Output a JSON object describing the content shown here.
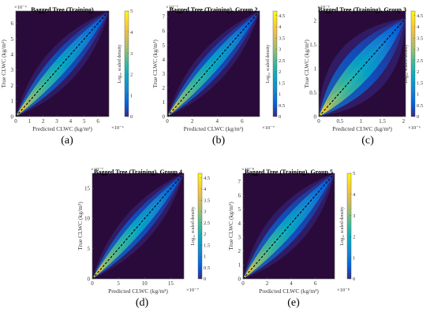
{
  "chart_data": [
    {
      "type": "heatmap",
      "panel_label": "(a)",
      "title": "Bagged Tree (Training)",
      "xlabel": "Predicted CLWC (kg/m³)",
      "ylabel": "True CLWC (kg/m³)",
      "axis_exponent": "×10⁻⁶",
      "xlim": [
        0,
        6.8
      ],
      "ylim": [
        0,
        6.8
      ],
      "xticks": [
        0,
        1,
        2,
        3,
        4,
        5,
        6
      ],
      "yticks": [
        0,
        1,
        2,
        3,
        4,
        5,
        6
      ],
      "colorbar_label": "Log₁₀ scaled density",
      "colorbar_range": [
        0,
        5
      ],
      "colorbar_ticks": [
        0,
        1,
        2,
        3,
        4,
        5
      ],
      "diagonal": "dashed black y = x",
      "spread": 0.055
    },
    {
      "type": "heatmap",
      "panel_label": "(b)",
      "title": "Bagged Tree (Training), Group 2",
      "xlabel": "Predicted CLWC (kg/m³)",
      "ylabel": "True CLWC (kg/m³)",
      "axis_exponent": "×10⁻⁷",
      "xlim": [
        0,
        7.4
      ],
      "ylim": [
        0,
        7.4
      ],
      "xticks": [
        0,
        2,
        4,
        6
      ],
      "yticks": [
        0,
        1,
        2,
        3,
        4,
        5,
        6,
        7
      ],
      "colorbar_label": "Log₁₀ scaled density",
      "colorbar_range": [
        0,
        4.7
      ],
      "colorbar_ticks": [
        0,
        0.5,
        1,
        1.5,
        2,
        2.5,
        3,
        3.5,
        4,
        4.5
      ],
      "diagonal": "dashed black y = x",
      "spread": 0.05
    },
    {
      "type": "heatmap",
      "panel_label": "(c)",
      "title": "Bagged Tree (Training), Group 3",
      "xlabel": "Predicted CLWC (kg/m³)",
      "ylabel": "True CLWC (kg/m³)",
      "axis_exponent": "×10⁻⁶",
      "xlim": [
        0,
        2.05
      ],
      "ylim": [
        0,
        2.2
      ],
      "xticks": [
        0,
        0.5,
        1,
        1.5,
        2
      ],
      "yticks": [
        0,
        0.5,
        1,
        1.5,
        2
      ],
      "colorbar_label": "Log₁₀ scaled density",
      "colorbar_range": [
        0,
        4.7
      ],
      "colorbar_ticks": [
        0,
        0.5,
        1,
        1.5,
        2,
        2.5,
        3,
        3.5,
        4,
        4.5
      ],
      "diagonal": "dashed black y = x",
      "spread": 0.09
    },
    {
      "type": "heatmap",
      "panel_label": "(d)",
      "title": "Bagged Tree (Training), Group 4",
      "xlabel": "Predicted CLWC (kg/m³)",
      "ylabel": "True CLWC (kg/m³)",
      "axis_exponent": "×10⁻⁷",
      "xlim": [
        0,
        17.5
      ],
      "ylim": [
        0,
        17.5
      ],
      "xticks": [
        0,
        5,
        10,
        15
      ],
      "yticks": [
        0,
        5,
        10,
        15
      ],
      "colorbar_label": "Log₁₀ scaled density",
      "colorbar_range": [
        0,
        4.7
      ],
      "colorbar_ticks": [
        0,
        0.5,
        1,
        1.5,
        2,
        2.5,
        3,
        3.5,
        4,
        4.5
      ],
      "diagonal": "dashed black y = x",
      "spread": 0.05
    },
    {
      "type": "heatmap",
      "panel_label": "(e)",
      "title": "Bagged Tree (Training), Group 5",
      "xlabel": "Predicted CLWC (kg/m³)",
      "ylabel": "True CLWC (kg/m³)",
      "axis_exponent": "×10⁻⁸",
      "xlim": [
        0,
        7.6
      ],
      "ylim": [
        0,
        7.6
      ],
      "xticks": [
        0,
        2,
        4,
        6
      ],
      "yticks": [
        0,
        1,
        2,
        3,
        4,
        5,
        6,
        7
      ],
      "colorbar_label": "Log₁₀ scaled density",
      "colorbar_range": [
        0,
        5
      ],
      "colorbar_ticks": [
        0,
        1,
        2,
        3,
        4,
        5
      ],
      "diagonal": "dashed black y = x",
      "spread": 0.06
    }
  ],
  "colors": {
    "background_low": "#2a0a3a",
    "diagonal": "#000000",
    "parula": [
      "#352a87",
      "#0363e1",
      "#1485d4",
      "#06a7c6",
      "#38b99e",
      "#92bf73",
      "#d9ba56",
      "#fcce2e",
      "#f9fb0e"
    ]
  }
}
